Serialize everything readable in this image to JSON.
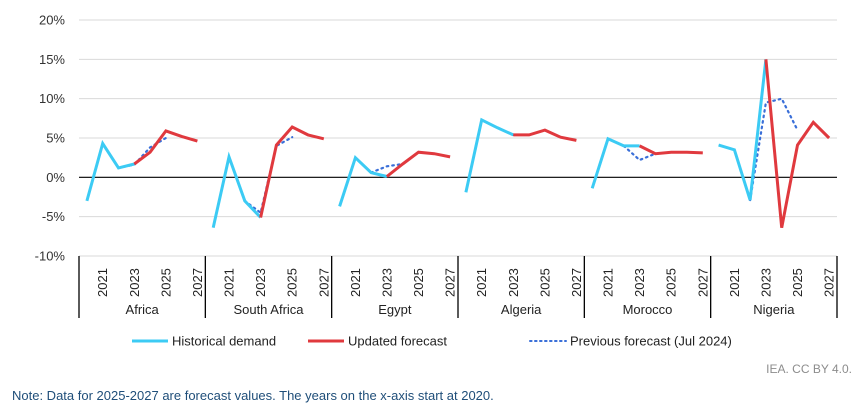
{
  "chart_data": {
    "type": "line",
    "title": "",
    "xlabel": "",
    "ylabel": "",
    "ylim": [
      -10,
      20
    ],
    "yticks": [
      20,
      15,
      10,
      5,
      0,
      -5,
      -10
    ],
    "ytick_format": "{v}%",
    "grid": true,
    "years": [
      2020,
      2021,
      2022,
      2023,
      2024,
      2025,
      2026,
      2027
    ],
    "year_tick_labels": [
      "2021",
      "2023",
      "2025",
      "2027"
    ],
    "groups": [
      {
        "name": "Africa",
        "historical": [
          -3.0,
          4.3,
          1.2,
          1.7,
          null,
          null,
          null,
          null
        ],
        "updated": [
          null,
          null,
          null,
          1.7,
          3.2,
          5.9,
          5.2,
          4.6
        ],
        "previous": [
          null,
          null,
          1.2,
          1.6,
          3.8,
          5.0,
          null,
          null
        ]
      },
      {
        "name": "South Africa",
        "historical": [
          -6.4,
          2.6,
          -3.0,
          -5.1,
          null,
          null,
          null,
          null
        ],
        "updated": [
          null,
          null,
          null,
          -5.1,
          4.1,
          6.4,
          5.4,
          4.9
        ],
        "previous": [
          null,
          null,
          -3.0,
          -4.5,
          4.0,
          5.1,
          null,
          null
        ]
      },
      {
        "name": "Egypt",
        "historical": [
          -3.7,
          2.5,
          0.6,
          0.1,
          null,
          null,
          null,
          null
        ],
        "updated": [
          null,
          null,
          null,
          0.1,
          1.7,
          3.2,
          3.0,
          2.6
        ],
        "previous": [
          null,
          null,
          0.6,
          1.4,
          1.7,
          3.2,
          null,
          null
        ]
      },
      {
        "name": "Algeria",
        "historical": [
          -1.9,
          7.3,
          6.3,
          5.4,
          null,
          null,
          null,
          null
        ],
        "updated": [
          null,
          null,
          null,
          5.4,
          5.4,
          6.0,
          5.1,
          4.7
        ],
        "previous": [
          null,
          null,
          6.3,
          5.4,
          5.4,
          6.0,
          null,
          null
        ]
      },
      {
        "name": "Morocco",
        "historical": [
          -1.4,
          4.9,
          4.0,
          4.0,
          null,
          null,
          null,
          null
        ],
        "updated": [
          null,
          null,
          null,
          4.0,
          3.0,
          3.2,
          3.2,
          3.1
        ],
        "previous": [
          null,
          null,
          4.0,
          2.2,
          3.0,
          3.2,
          null,
          null
        ]
      },
      {
        "name": "Nigeria",
        "historical": [
          4.1,
          3.5,
          -2.9,
          15.0,
          null,
          null,
          null,
          null
        ],
        "updated": [
          null,
          null,
          null,
          15.0,
          -6.4,
          4.1,
          7.0,
          5.0
        ],
        "previous": [
          null,
          null,
          -2.9,
          9.5,
          10.0,
          6.0,
          null,
          null
        ]
      }
    ],
    "series": [
      {
        "key": "historical",
        "name": "Historical demand",
        "color": "#3ccbf4",
        "style": "solid"
      },
      {
        "key": "updated",
        "name": "Updated forecast",
        "color": "#e0393e",
        "style": "solid"
      },
      {
        "key": "previous",
        "name": "Previous forecast (Jul 2024)",
        "color": "#3a6fd8",
        "style": "dotted"
      }
    ],
    "legend_position": "bottom"
  },
  "credit": "IEA. CC BY 4.0.",
  "note": "Note: Data for 2025-2027 are forecast values. The years on the x-axis start at 2020."
}
